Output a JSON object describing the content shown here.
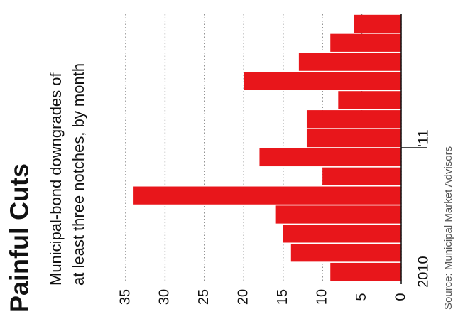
{
  "chart_data": {
    "type": "bar",
    "title": "Painful Cuts",
    "subtitle": [
      "Municipal-bond downgrades of",
      "at least three notches, by month"
    ],
    "source": "Source: Municipal Market Advisors",
    "categories": [
      "2010",
      null,
      null,
      null,
      null,
      null,
      null,
      "'11",
      null,
      null,
      null,
      null,
      null,
      null
    ],
    "values": [
      9,
      14,
      15,
      16,
      34,
      10,
      18,
      12,
      12,
      8,
      20,
      13,
      9,
      6
    ],
    "color": "#e8161b",
    "ylim": [
      0,
      35
    ],
    "yticks": [
      0,
      5,
      10,
      15,
      20,
      25,
      30,
      35
    ],
    "grid": true
  }
}
